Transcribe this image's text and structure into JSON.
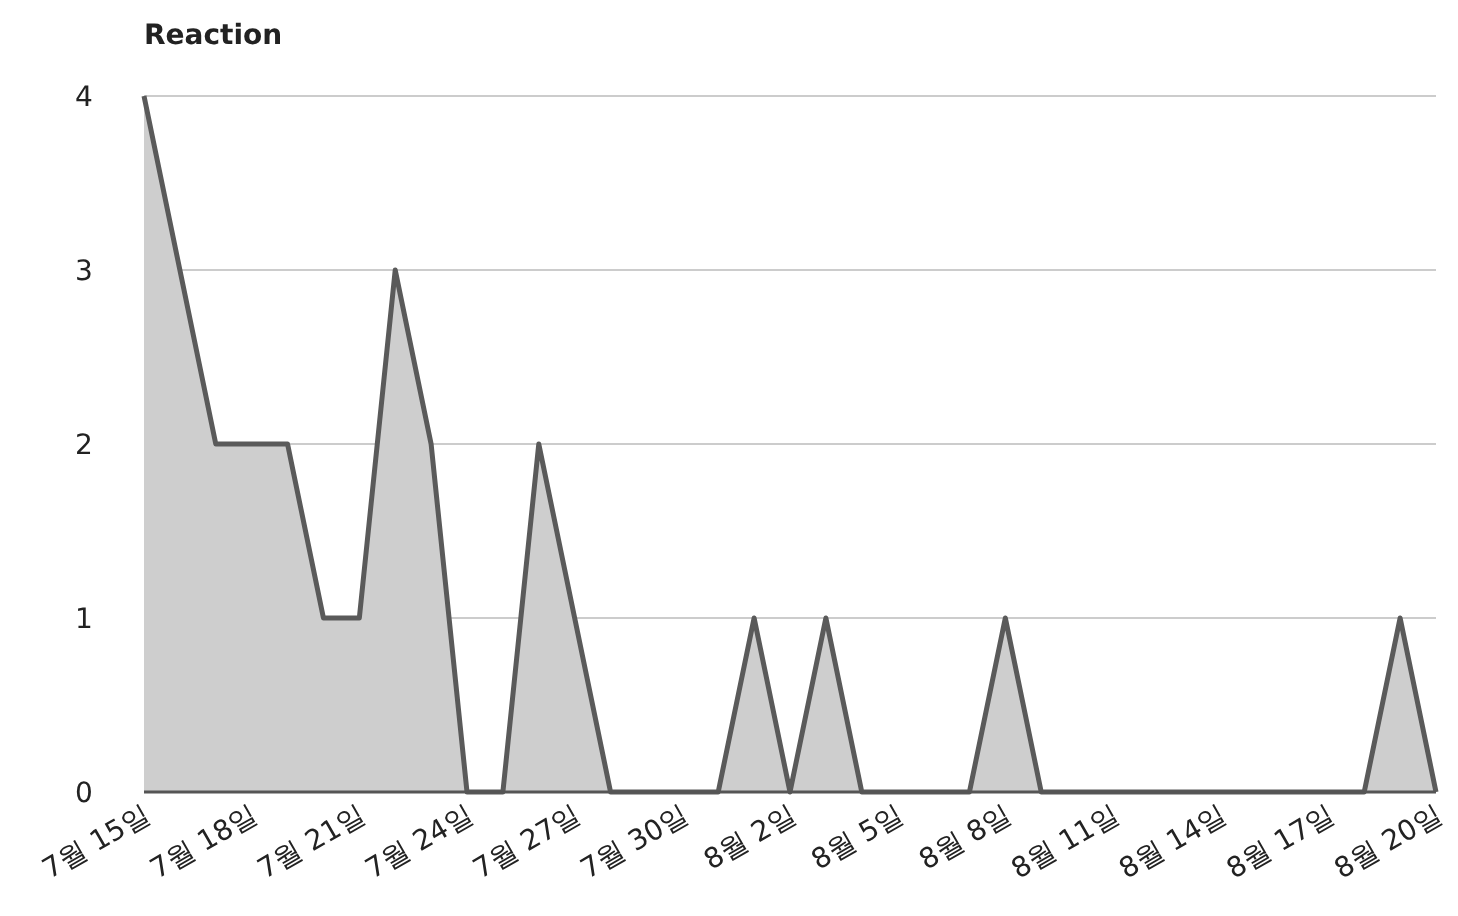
{
  "chart_data": {
    "type": "area",
    "title": "Reaction",
    "categories": [
      "7월 15일",
      null,
      null,
      "7월 18일",
      null,
      null,
      "7월 21일",
      null,
      null,
      "7월 24일",
      null,
      null,
      "7월 27일",
      null,
      null,
      "7월 30일",
      null,
      null,
      "8월 2일",
      null,
      null,
      "8월 5일",
      null,
      null,
      "8월 8일",
      null,
      null,
      "8월 11일",
      null,
      null,
      "8월 14일",
      null,
      null,
      "8월 17일",
      null,
      null,
      "8월 20일"
    ],
    "series": [
      {
        "color": "#5a5a5a",
        "values": [
          4,
          3,
          2,
          2,
          2,
          1,
          1,
          3,
          2,
          0,
          0,
          2,
          1,
          0,
          0,
          0,
          0,
          1,
          0,
          1,
          0,
          0,
          0,
          0,
          1,
          0,
          0,
          0,
          0,
          0,
          0,
          0,
          0,
          0,
          0,
          1,
          0
        ]
      }
    ],
    "ylim": [
      0,
      4
    ],
    "yticks": [
      0,
      1,
      2,
      3,
      4
    ],
    "grid": "y"
  }
}
